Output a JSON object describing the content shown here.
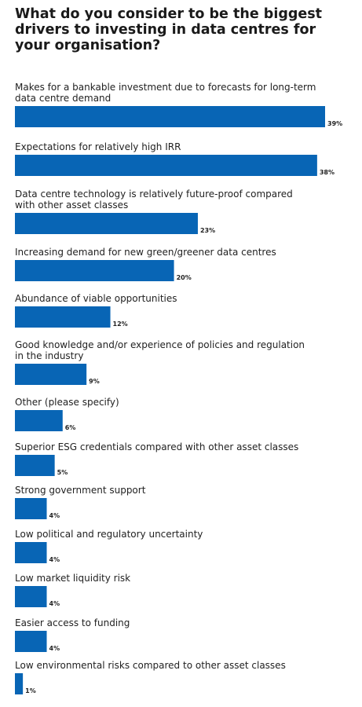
{
  "chart_data": {
    "type": "bar",
    "orientation": "horizontal",
    "title": "What do you consider to be the biggest drivers to investing in data centres for your organisation?",
    "categories": [
      [
        "Makes for a bankable investment due to forecasts for long-term",
        "data centre demand"
      ],
      [
        "Expectations for relatively high IRR"
      ],
      [
        "Data centre technology is relatively future-proof compared",
        "with other asset classes"
      ],
      [
        "Increasing demand for new green/greener data centres"
      ],
      [
        "Abundance of viable opportunities"
      ],
      [
        "Good knowledge and/or experience of policies and regulation",
        "in the industry"
      ],
      [
        "Other (please specify)"
      ],
      [
        "Superior ESG credentials compared with other asset classes"
      ],
      [
        "Strong government support"
      ],
      [
        "Low political and regulatory uncertainty"
      ],
      [
        "Low market liquidity risk"
      ],
      [
        "Easier access to funding"
      ],
      [
        "Low environmental risks compared to other asset classes"
      ]
    ],
    "values": [
      39,
      38,
      23,
      20,
      12,
      9,
      6,
      5,
      4,
      4,
      4,
      4,
      1
    ],
    "value_labels": [
      "39%",
      "38%",
      "23%",
      "20%",
      "12%",
      "9%",
      "6%",
      "5%",
      "4%",
      "4%",
      "4%",
      "4%",
      "1%"
    ],
    "xlim": [
      0,
      39
    ],
    "bar_color": "#0865b5",
    "title_color": "#1a1a1a",
    "grid": false,
    "legend": "none"
  }
}
